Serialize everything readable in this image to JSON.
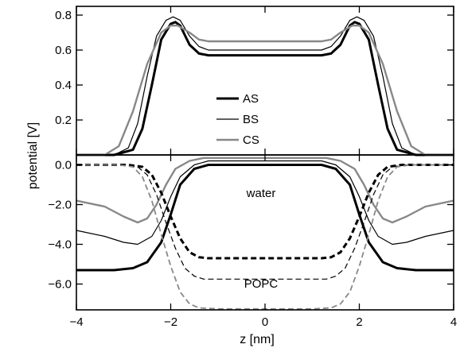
{
  "chart_data": [
    {
      "type": "line",
      "panel": "top",
      "xlabel": "",
      "ylabel": "potential [V]",
      "xlim": [
        -4,
        4
      ],
      "ylim": [
        0,
        0.85
      ],
      "yticks": [
        0.2,
        0.4,
        0.6,
        0.8
      ],
      "ytick_labels": [
        "0.2",
        "0.4",
        "0.6",
        "0.8"
      ],
      "legend": {
        "placement": "center",
        "entries": [
          "AS",
          "BS",
          "CS"
        ]
      },
      "series": [
        {
          "name": "AS",
          "color": "#000000",
          "style": "solid-thick",
          "x": [
            -4,
            -3.2,
            -2.8,
            -2.6,
            -2.4,
            -2.2,
            -2.0,
            -1.9,
            -1.8,
            -1.6,
            -1.4,
            -1.2,
            -1,
            0,
            1,
            1.2,
            1.4,
            1.6,
            1.8,
            1.9,
            2.0,
            2.2,
            2.4,
            2.6,
            2.8,
            3.2,
            4
          ],
          "y": [
            0,
            0.0,
            0.03,
            0.15,
            0.4,
            0.66,
            0.75,
            0.76,
            0.74,
            0.63,
            0.58,
            0.57,
            0.57,
            0.57,
            0.57,
            0.57,
            0.58,
            0.63,
            0.74,
            0.76,
            0.75,
            0.66,
            0.4,
            0.15,
            0.03,
            0.0,
            0
          ]
        },
        {
          "name": "BS",
          "color": "#000000",
          "style": "solid-thin",
          "x": [
            -4,
            -3.2,
            -2.9,
            -2.7,
            -2.5,
            -2.3,
            -2.1,
            -1.95,
            -1.8,
            -1.6,
            -1.4,
            -1.2,
            -1,
            0,
            1,
            1.2,
            1.4,
            1.6,
            1.8,
            1.95,
            2.1,
            2.3,
            2.5,
            2.7,
            2.9,
            3.2,
            4
          ],
          "y": [
            0,
            0.0,
            0.04,
            0.18,
            0.45,
            0.68,
            0.77,
            0.79,
            0.77,
            0.68,
            0.62,
            0.6,
            0.6,
            0.6,
            0.6,
            0.6,
            0.62,
            0.68,
            0.77,
            0.79,
            0.77,
            0.68,
            0.45,
            0.18,
            0.04,
            0.0,
            0
          ]
        },
        {
          "name": "CS",
          "color": "#888888",
          "style": "solid-gray",
          "x": [
            -4,
            -3.4,
            -3.1,
            -2.8,
            -2.5,
            -2.2,
            -2.0,
            -1.85,
            -1.6,
            -1.4,
            -1.2,
            -1,
            0,
            1,
            1.2,
            1.4,
            1.6,
            1.85,
            2.0,
            2.2,
            2.5,
            2.8,
            3.1,
            3.4,
            4
          ],
          "y": [
            0,
            0.0,
            0.05,
            0.25,
            0.52,
            0.7,
            0.74,
            0.74,
            0.7,
            0.66,
            0.65,
            0.65,
            0.65,
            0.65,
            0.65,
            0.66,
            0.7,
            0.74,
            0.74,
            0.7,
            0.52,
            0.25,
            0.05,
            0.0,
            0
          ]
        }
      ]
    },
    {
      "type": "line",
      "panel": "bottom",
      "xlabel": "z [nm]",
      "ylabel": "",
      "xlim": [
        -4,
        4
      ],
      "ylim": [
        -7.3,
        0.5
      ],
      "xticks": [
        -4,
        -2,
        0,
        2,
        4
      ],
      "xtick_labels": [
        "−4",
        "−2",
        "0",
        "2",
        "4"
      ],
      "yticks": [
        0,
        -2,
        -4,
        -6
      ],
      "ytick_labels": [
        "0.0",
        "−2.0",
        "−4.0",
        "−6.0"
      ],
      "annotations": [
        "water",
        "POPC"
      ],
      "series": [
        {
          "name": "AS",
          "color": "#000000",
          "style": "solid-thick",
          "x": [
            -4,
            -3.2,
            -2.8,
            -2.5,
            -2.2,
            -2.0,
            -1.8,
            -1.5,
            -1.2,
            -1,
            0,
            1,
            1.2,
            1.5,
            1.8,
            2.0,
            2.2,
            2.5,
            2.8,
            3.2,
            4
          ],
          "y": [
            -5.3,
            -5.3,
            -5.2,
            -4.9,
            -3.9,
            -2.5,
            -1.0,
            -0.2,
            0.0,
            0.0,
            0.0,
            0.0,
            0.0,
            -0.2,
            -1.0,
            -2.5,
            -3.9,
            -4.9,
            -5.2,
            -5.3,
            -5.3
          ]
        },
        {
          "name": "BS",
          "color": "#000000",
          "style": "solid-thin",
          "x": [
            -4,
            -3.4,
            -3.0,
            -2.7,
            -2.4,
            -2.2,
            -2.0,
            -1.8,
            -1.5,
            -1.2,
            -1,
            0,
            1,
            1.2,
            1.5,
            1.8,
            2.0,
            2.2,
            2.4,
            2.7,
            3.0,
            3.4,
            4
          ],
          "y": [
            -3.3,
            -3.6,
            -3.9,
            -4.0,
            -3.6,
            -2.8,
            -1.6,
            -0.6,
            0.0,
            0.2,
            0.2,
            0.2,
            0.2,
            0.2,
            0.0,
            -0.6,
            -1.6,
            -2.8,
            -3.6,
            -4.0,
            -3.9,
            -3.6,
            -3.3
          ]
        },
        {
          "name": "CS",
          "color": "#888888",
          "style": "solid-gray",
          "x": [
            -4,
            -3.4,
            -3.0,
            -2.7,
            -2.5,
            -2.3,
            -2.1,
            -1.9,
            -1.6,
            -1.3,
            -1,
            0,
            1,
            1.3,
            1.6,
            1.9,
            2.1,
            2.3,
            2.5,
            2.7,
            3.0,
            3.4,
            4
          ],
          "y": [
            -1.8,
            -2.1,
            -2.6,
            -2.9,
            -2.7,
            -2.0,
            -1.0,
            -0.2,
            0.2,
            0.35,
            0.35,
            0.35,
            0.35,
            0.35,
            0.2,
            -0.2,
            -1.0,
            -2.0,
            -2.7,
            -2.9,
            -2.6,
            -2.1,
            -1.8
          ]
        },
        {
          "name": "AS POPC",
          "color": "#000000",
          "style": "dashed-thick",
          "x": [
            -4,
            -2.9,
            -2.6,
            -2.4,
            -2.2,
            -2.0,
            -1.8,
            -1.6,
            -1.4,
            -1.2,
            -1,
            0,
            1,
            1.2,
            1.4,
            1.6,
            1.8,
            2.0,
            2.2,
            2.4,
            2.6,
            2.9,
            4
          ],
          "y": [
            0.0,
            0.0,
            -0.1,
            -0.5,
            -1.4,
            -2.6,
            -3.7,
            -4.4,
            -4.65,
            -4.7,
            -4.7,
            -4.7,
            -4.7,
            -4.7,
            -4.65,
            -4.4,
            -3.7,
            -2.6,
            -1.4,
            -0.5,
            -0.1,
            0.0,
            0.0
          ]
        },
        {
          "name": "BS POPC",
          "color": "#000000",
          "style": "dashed-thin",
          "x": [
            -4,
            -3.0,
            -2.7,
            -2.5,
            -2.3,
            -2.1,
            -1.9,
            -1.7,
            -1.5,
            -1.3,
            -1,
            0,
            1,
            1.3,
            1.5,
            1.7,
            1.9,
            2.1,
            2.3,
            2.5,
            2.7,
            3.0,
            4
          ],
          "y": [
            0.0,
            0.0,
            -0.1,
            -0.5,
            -1.5,
            -2.9,
            -4.2,
            -5.2,
            -5.6,
            -5.75,
            -5.75,
            -5.75,
            -5.75,
            -5.75,
            -5.6,
            -5.2,
            -4.2,
            -2.9,
            -1.5,
            -0.5,
            -0.1,
            0.0,
            0.0
          ]
        },
        {
          "name": "CS POPC",
          "color": "#888888",
          "style": "dashed-gray",
          "x": [
            -4,
            -3.1,
            -2.8,
            -2.6,
            -2.4,
            -2.2,
            -2.0,
            -1.8,
            -1.6,
            -1.4,
            -1,
            0,
            1,
            1.4,
            1.6,
            1.8,
            2.0,
            2.2,
            2.4,
            2.6,
            2.8,
            3.1,
            4
          ],
          "y": [
            0.0,
            0.0,
            -0.1,
            -0.6,
            -1.8,
            -3.5,
            -5.1,
            -6.4,
            -7.0,
            -7.2,
            -7.25,
            -7.25,
            -7.25,
            -7.2,
            -7.0,
            -6.4,
            -5.1,
            -3.5,
            -1.8,
            -0.6,
            -0.1,
            0.0,
            0.0
          ]
        }
      ]
    }
  ]
}
